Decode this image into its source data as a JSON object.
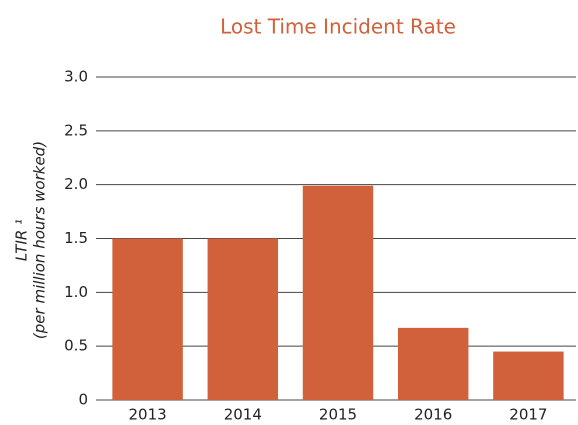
{
  "chart_data": {
    "type": "bar",
    "title": "Lost Time Incident Rate",
    "y_label": [
      "LTIR ¹",
      "(per million hours worked)"
    ],
    "categories": [
      "2013",
      "2014",
      "2015",
      "2016",
      "2017"
    ],
    "values": [
      1.5,
      1.5,
      1.99,
      0.67,
      0.45
    ],
    "color": "#d0613a",
    "ylim": [
      0,
      3
    ],
    "yticks": [
      0,
      0.5,
      {
        "value": 1,
        "label": "1.0"
      },
      1.5,
      {
        "value": 2,
        "label": "2.0"
      },
      2.5,
      {
        "value": 3,
        "label": "3.0"
      }
    ],
    "grid": true
  }
}
